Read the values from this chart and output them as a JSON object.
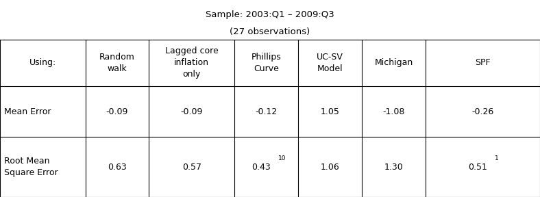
{
  "title_line1": "Sample: 2003:Q1 – 2009:Q3",
  "title_line2": "(27 observations)",
  "col_headers": [
    "Using:",
    "Random\nwalk",
    "Lagged core\ninflation\nonly",
    "Phillips\nCurve",
    "UC-SV\nModel",
    "Michigan",
    "SPF"
  ],
  "row_labels": [
    "Mean Error",
    "Root Mean\nSquare Error"
  ],
  "data_base": [
    [
      "-0.09",
      "-0.09",
      "-0.12",
      "1.05",
      "-1.08",
      "-0.26"
    ],
    [
      "0.63",
      "0.57",
      "0.43",
      "1.06",
      "1.30",
      "0.51"
    ]
  ],
  "data_superscript": [
    [
      "",
      "",
      "",
      "",
      "",
      ""
    ],
    [
      "",
      "",
      "10",
      "",
      "",
      "1"
    ]
  ],
  "bg_color": "#ffffff",
  "text_color": "#000000",
  "line_color": "#000000",
  "title_fontsize": 9.5,
  "cell_fontsize": 9.0,
  "sup_fontsize": 6.5,
  "fig_width": 7.88,
  "fig_height": 2.88
}
